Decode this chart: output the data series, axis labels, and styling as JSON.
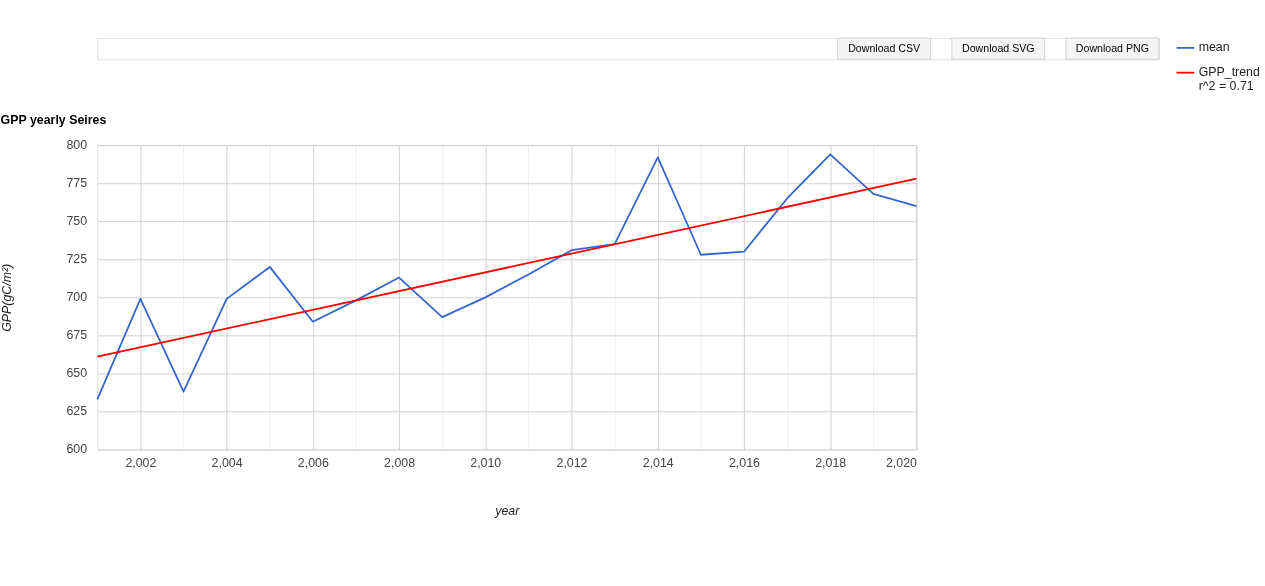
{
  "chart_data": {
    "type": "line",
    "title": "GPP yearly Seires",
    "xlabel": "year",
    "ylabel": "GPP(gC/m²)",
    "annotations": [
      "Download CSV",
      "Download SVG",
      "Download PNG"
    ],
    "x": [
      2001,
      2002,
      2003,
      2004,
      2005,
      2006,
      2007,
      2008,
      2009,
      2010,
      2011,
      2012,
      2013,
      2014,
      2015,
      2016,
      2017,
      2018,
      2019,
      2020
    ],
    "series": [
      {
        "name": "mean",
        "color": "#3366cc",
        "values": [
          633,
          699,
          638,
          699,
          720,
          684,
          698,
          713,
          687,
          700,
          715,
          731,
          735,
          792,
          728,
          730,
          765,
          794,
          768,
          760
        ]
      },
      {
        "name": "GPP_trend\nr^2 = 0.71",
        "color": "#ff0000",
        "x": [
          2001,
          2020
        ],
        "values": [
          661,
          778
        ]
      }
    ],
    "xlim": [
      2001,
      2020
    ],
    "xticks": [
      {
        "value": 2002,
        "label": "2,002"
      },
      {
        "value": 2003,
        "label": null
      },
      {
        "value": 2004,
        "label": "2,004"
      },
      {
        "value": 2005,
        "label": null
      },
      {
        "value": 2006,
        "label": "2,006"
      },
      {
        "value": 2007,
        "label": null
      },
      {
        "value": 2008,
        "label": "2,008"
      },
      {
        "value": 2009,
        "label": null
      },
      {
        "value": 2010,
        "label": "2,010"
      },
      {
        "value": 2011,
        "label": null
      },
      {
        "value": 2012,
        "label": "2,012"
      },
      {
        "value": 2013,
        "label": null
      },
      {
        "value": 2014,
        "label": "2,014"
      },
      {
        "value": 2015,
        "label": null
      },
      {
        "value": 2016,
        "label": "2,016"
      },
      {
        "value": 2017,
        "label": null
      },
      {
        "value": 2018,
        "label": "2,018"
      },
      {
        "value": 2019,
        "label": null
      },
      {
        "value": 2020,
        "label": "2,020"
      }
    ],
    "ylim": [
      600,
      800
    ],
    "yticks": [
      600,
      625,
      650,
      675,
      700,
      725,
      750,
      775,
      800
    ],
    "grid": true,
    "legend": "top right",
    "marker": "none",
    "line_style": "solid"
  }
}
